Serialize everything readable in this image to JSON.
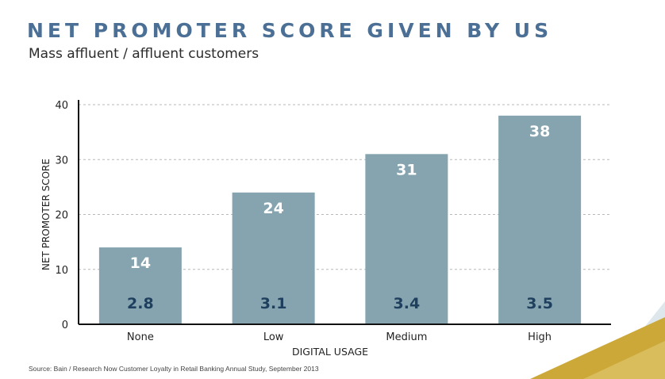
{
  "title": "NET PROMOTER SCORE GIVEN BY US",
  "subtitle": "Mass affluent / affluent customers",
  "source": "Source: Bain / Research Now Customer Loyalty in Retail Banking Annual Study, September 2013",
  "colors": {
    "title": "#4b6f95",
    "bar": "#85a4af",
    "bar_label": "#ffffff",
    "inner_label": "#1f3f5e",
    "accent_gold": "#cca838",
    "accent_pale": "#dde7ec"
  },
  "chart_data": {
    "type": "bar",
    "categories": [
      "None",
      "Low",
      "Medium",
      "High"
    ],
    "values": [
      14,
      24,
      31,
      38
    ],
    "bar_labels": [
      "14",
      "24",
      "31",
      "38"
    ],
    "inner_labels": [
      "2.8",
      "3.1",
      "3.4",
      "3.5"
    ],
    "xlabel": "DIGITAL USAGE",
    "ylabel": "NET PROMOTER SCORE",
    "ylim": [
      0,
      40
    ],
    "yticks": [
      0,
      10,
      20,
      30,
      40
    ],
    "grid": true
  }
}
